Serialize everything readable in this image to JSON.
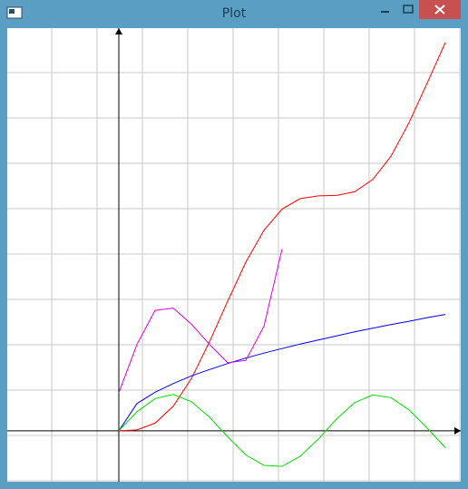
{
  "window": {
    "title": "Plot"
  },
  "chart_data": {
    "type": "line",
    "xlim": [
      -2.46,
      7.54
    ],
    "ylim": [
      -1.12,
      8.86
    ],
    "series": [
      {
        "color": "#ff0000",
        "x": [
          0,
          0.4,
          0.8,
          1.2,
          1.6,
          2.0,
          2.4,
          2.8,
          3.2,
          3.6,
          4.0,
          4.4,
          4.8,
          5.2,
          5.6,
          6.0,
          6.4,
          6.8,
          7.2
        ],
        "values": [
          0,
          0.02,
          0.17,
          0.54,
          1.15,
          1.96,
          2.85,
          3.71,
          4.41,
          4.88,
          5.11,
          5.17,
          5.18,
          5.26,
          5.53,
          6.04,
          6.78,
          7.65,
          8.54
        ]
      },
      {
        "color": "#0000ff",
        "x": [
          0,
          0.4,
          0.8,
          1.2,
          1.6,
          2.0,
          2.4,
          2.8,
          3.2,
          3.6,
          4.0,
          4.4,
          4.8,
          5.2,
          5.6,
          6.0,
          6.4,
          6.8,
          7.2
        ],
        "values": [
          0,
          0.6,
          0.85,
          1.04,
          1.21,
          1.35,
          1.48,
          1.6,
          1.71,
          1.81,
          1.91,
          2.0,
          2.09,
          2.18,
          2.26,
          2.34,
          2.41,
          2.49,
          2.56
        ]
      },
      {
        "color": "#00e000",
        "x": [
          0,
          0.4,
          0.8,
          1.2,
          1.6,
          2.0,
          2.4,
          2.8,
          3.2,
          3.6,
          4.0,
          4.4,
          4.8,
          5.2,
          5.6,
          6.0,
          6.4,
          6.8,
          7.2
        ],
        "values": [
          0,
          0.42,
          0.71,
          0.8,
          0.64,
          0.3,
          -0.13,
          -0.53,
          -0.76,
          -0.78,
          -0.56,
          -0.18,
          0.26,
          0.62,
          0.79,
          0.73,
          0.46,
          0.06,
          -0.37
        ]
      },
      {
        "color": "#e000e0",
        "x": [
          0,
          0.4,
          0.8,
          1.2,
          1.6,
          2.0,
          2.4,
          2.8,
          3.2,
          3.6
        ],
        "values": [
          0.84,
          1.9,
          2.65,
          2.7,
          2.35,
          1.9,
          1.5,
          1.55,
          2.3,
          4.0
        ]
      }
    ]
  }
}
